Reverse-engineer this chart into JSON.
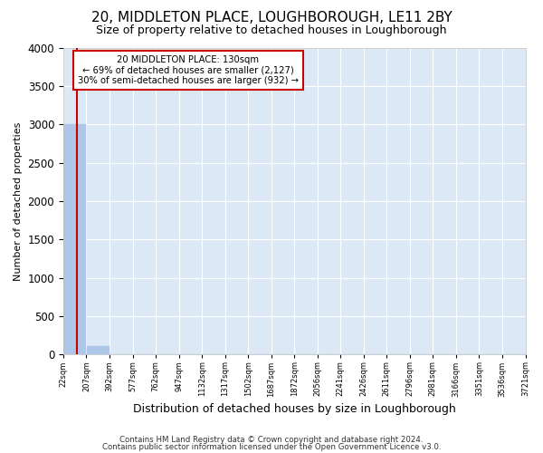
{
  "title": "20, MIDDLETON PLACE, LOUGHBOROUGH, LE11 2BY",
  "subtitle": "Size of property relative to detached houses in Loughborough",
  "xlabel": "Distribution of detached houses by size in Loughborough",
  "ylabel": "Number of detached properties",
  "footnote1": "Contains HM Land Registry data © Crown copyright and database right 2024.",
  "footnote2": "Contains public sector information licensed under the Open Government Licence v3.0.",
  "annotation_line1": "20 MIDDLETON PLACE: 130sqm",
  "annotation_line2": "← 69% of detached houses are smaller (2,127)",
  "annotation_line3": "30% of semi-detached houses are larger (932) →",
  "bar_edges": [
    22,
    207,
    392,
    577,
    762,
    947,
    1132,
    1317,
    1502,
    1687,
    1872,
    2056,
    2241,
    2426,
    2611,
    2796,
    2981,
    3166,
    3351,
    3536,
    3721
  ],
  "bar_heights": [
    3000,
    110,
    0,
    0,
    0,
    0,
    0,
    0,
    0,
    0,
    0,
    0,
    0,
    0,
    0,
    0,
    0,
    0,
    0,
    0
  ],
  "bar_color": "#aec6e8",
  "bar_edge_color": "#aec6e8",
  "vline_x": 130,
  "vline_color": "#cc0000",
  "ylim": [
    0,
    4000
  ],
  "xlim": [
    22,
    3721
  ],
  "fig_bg_color": "#ffffff",
  "plot_bg_color": "#dce9f5",
  "grid_color": "#ffffff",
  "title_fontsize": 11,
  "subtitle_fontsize": 9,
  "xlabel_fontsize": 9,
  "ylabel_fontsize": 8,
  "annotation_box_facecolor": "#ffffff",
  "annotation_box_edgecolor": "#cc0000",
  "tick_labels": [
    "22sqm",
    "207sqm",
    "392sqm",
    "577sqm",
    "762sqm",
    "947sqm",
    "1132sqm",
    "1317sqm",
    "1502sqm",
    "1687sqm",
    "1872sqm",
    "2056sqm",
    "2241sqm",
    "2426sqm",
    "2611sqm",
    "2796sqm",
    "2981sqm",
    "3166sqm",
    "3351sqm",
    "3536sqm",
    "3721sqm"
  ],
  "yticks": [
    0,
    500,
    1000,
    1500,
    2000,
    2500,
    3000,
    3500,
    4000
  ]
}
